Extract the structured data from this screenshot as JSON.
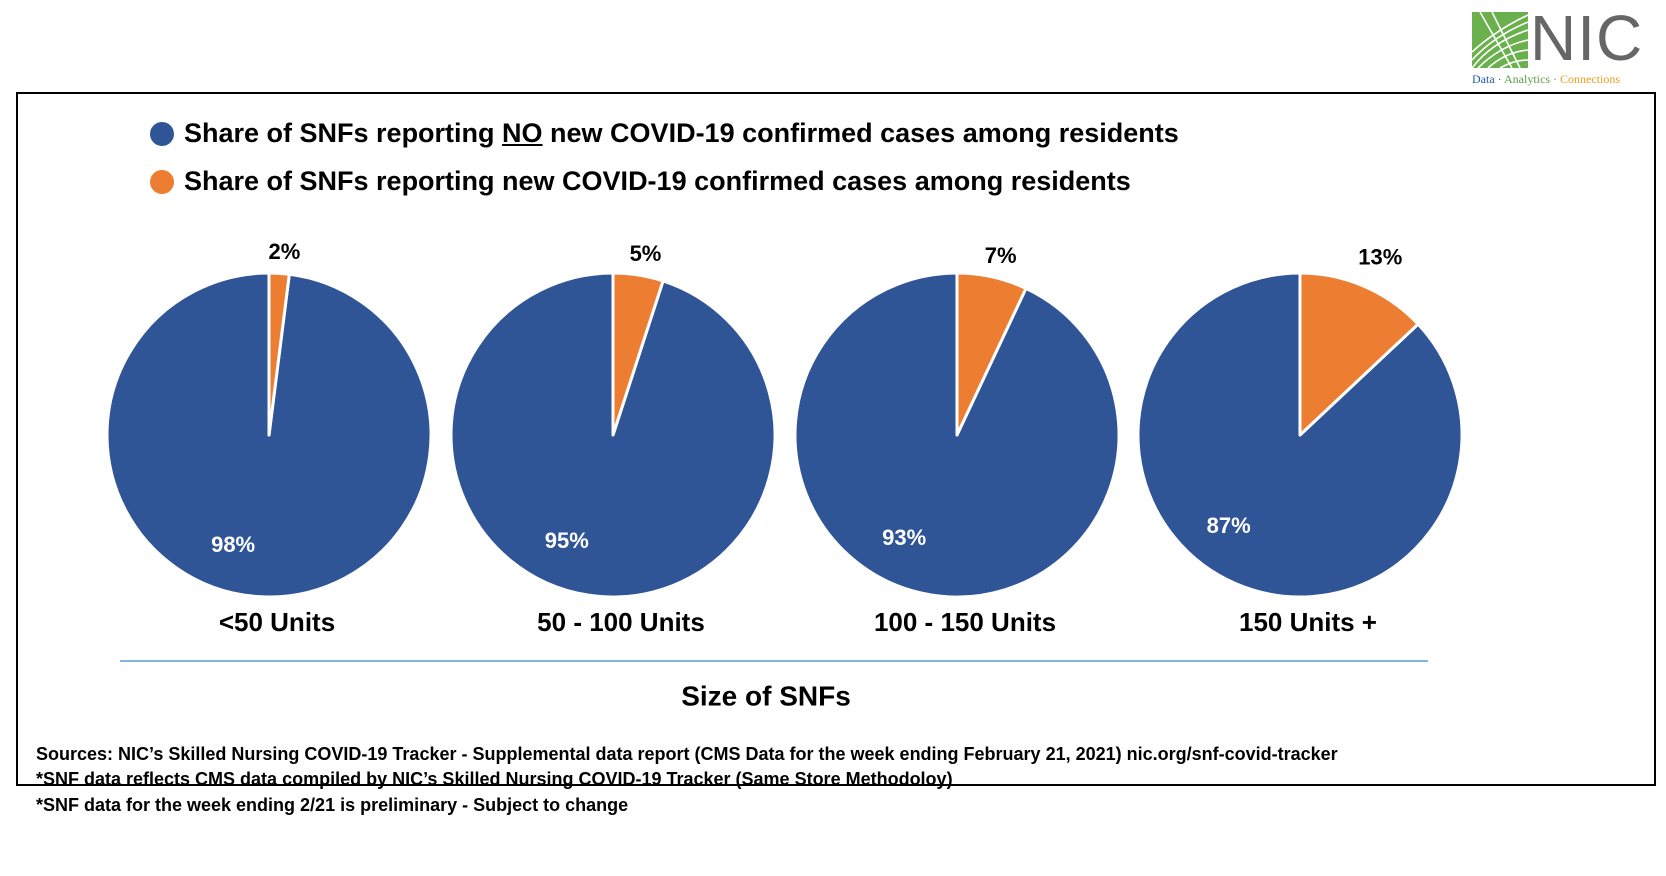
{
  "logo": {
    "text": "NIC",
    "tagline_part1": "Data · ",
    "tagline_part2": "Analytics · ",
    "tagline_part3": "Connections"
  },
  "colors": {
    "no_cases": "#2f5597",
    "new_cases": "#ed7d31",
    "axis_line": "#5b9bd5"
  },
  "legend": {
    "item1_prefix": "Share of SNFs reporting ",
    "item1_emphasis": "NO",
    "item1_suffix": " new COVID-19 confirmed cases among residents",
    "item2": "Share of SNFs reporting new COVID-19 confirmed cases among residents"
  },
  "chart_data": {
    "type": "pie",
    "xlabel": "Size of SNFs",
    "series_labels": [
      "Share of SNFs reporting NO new COVID-19 confirmed cases among residents",
      "Share of SNFs reporting new COVID-19 confirmed cases among residents"
    ],
    "pies": [
      {
        "category": "<50 Units",
        "no_cases": 98,
        "new_cases": 2,
        "no_label": "98%",
        "new_label": "2%"
      },
      {
        "category": "50 - 100 Units",
        "no_cases": 95,
        "new_cases": 5,
        "no_label": "95%",
        "new_label": "5%"
      },
      {
        "category": "100 - 150 Units",
        "no_cases": 93,
        "new_cases": 7,
        "no_label": "93%",
        "new_label": "7%"
      },
      {
        "category": "150 Units +",
        "no_cases": 87,
        "new_cases": 13,
        "no_label": "87%",
        "new_label": "13%"
      }
    ]
  },
  "footnotes": [
    "Sources: NIC’s Skilled Nursing COVID-19 Tracker - Supplemental data report (CMS Data for the week ending February 21, 2021)  nic.org/snf-covid-tracker",
    "*SNF data reflects CMS data compiled by NIC’s Skilled Nursing COVID-19 Tracker (Same Store Methodoloy)",
    "*SNF data for the week ending 2/21 is preliminary - Subject to change"
  ]
}
